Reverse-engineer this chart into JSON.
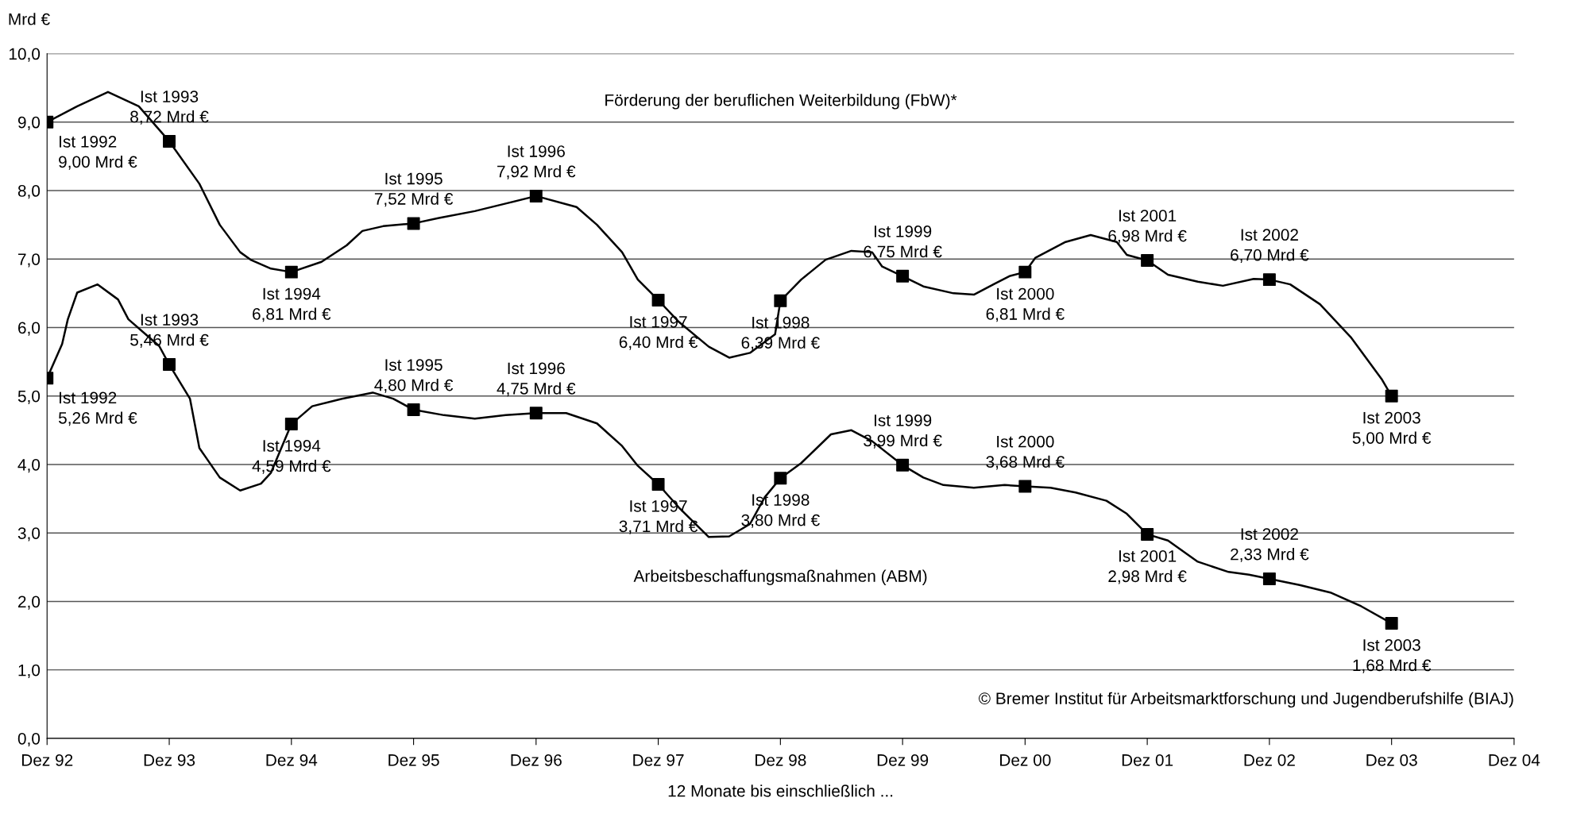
{
  "chart_data": {
    "type": "line",
    "ylabel": "Mrd €",
    "xlabel": "12 Monate bis einschließlich ...",
    "xlim": [
      "1992-12",
      "2004-12"
    ],
    "xticks": [
      {
        "value": "1992-12",
        "label": "Dez 92"
      },
      {
        "value": "1993-12",
        "label": "Dez 93"
      },
      {
        "value": "1994-12",
        "label": "Dez 94"
      },
      {
        "value": "1995-12",
        "label": "Dez 95"
      },
      {
        "value": "1996-12",
        "label": "Dez 96"
      },
      {
        "value": "1997-12",
        "label": "Dez 97"
      },
      {
        "value": "1998-12",
        "label": "Dez 98"
      },
      {
        "value": "1999-12",
        "label": "Dez 99"
      },
      {
        "value": "2000-12",
        "label": "Dez 00"
      },
      {
        "value": "2001-12",
        "label": "Dez 01"
      },
      {
        "value": "2002-12",
        "label": "Dez 02"
      },
      {
        "value": "2003-12",
        "label": "Dez 03"
      },
      {
        "value": "2004-12",
        "label": "Dez 04"
      }
    ],
    "ylim": [
      0,
      10
    ],
    "yticks": [
      {
        "value": 0,
        "label": "0,0"
      },
      {
        "value": 1,
        "label": "1,0"
      },
      {
        "value": 2,
        "label": "2,0"
      },
      {
        "value": 3,
        "label": "3,0"
      },
      {
        "value": 4,
        "label": "4,0"
      },
      {
        "value": 5,
        "label": "5,0"
      },
      {
        "value": 6,
        "label": "6,0"
      },
      {
        "value": 7,
        "label": "7,0"
      },
      {
        "value": 8,
        "label": "8,0"
      },
      {
        "value": 9,
        "label": "9,0"
      },
      {
        "value": 10,
        "label": "10,0"
      }
    ],
    "grid": "y",
    "series": [
      {
        "color": "#000000",
        "marker": "none",
        "x": [
          "1992-12",
          "1993-03",
          "1993-06",
          "1993-09",
          "1993-12",
          "1994-03",
          "1994-05",
          "1994-07",
          "1994-08",
          "1994-10",
          "1994-12",
          "1995-03",
          "1995-05-15",
          "1995-07",
          "1995-09",
          "1995-12",
          "1996-02-15",
          "1996-06",
          "1996-09",
          "1996-12",
          "1997-04",
          "1997-06",
          "1997-08-15",
          "1997-10",
          "1997-12",
          "1998-02",
          "1998-05",
          "1998-07",
          "1998-09",
          "1998-11-15",
          "1998-12",
          "1999-02",
          "1999-04-15",
          "1999-07",
          "1999-09",
          "1999-10",
          "1999-12",
          "2000-02",
          "2000-05",
          "2000-07",
          "2000-09",
          "2000-10-15",
          "2000-12",
          "2001-01",
          "2001-04",
          "2001-06-15",
          "2001-09",
          "2001-10",
          "2001-12",
          "2002-02",
          "2002-05",
          "2002-07-15",
          "2002-10-15",
          "2002-12",
          "2003-02",
          "2003-05",
          "2003-08",
          "2003-11",
          "2003-12"
        ],
        "values": [
          9.0,
          9.23,
          9.44,
          9.23,
          8.72,
          8.1,
          7.5,
          7.1,
          6.99,
          6.86,
          6.81,
          6.96,
          7.2,
          7.41,
          7.48,
          7.52,
          7.6,
          7.7,
          7.81,
          7.92,
          7.76,
          7.5,
          7.1,
          6.7,
          6.4,
          6.08,
          5.72,
          5.56,
          5.63,
          5.9,
          6.39,
          6.7,
          6.99,
          7.12,
          7.1,
          6.89,
          6.75,
          6.6,
          6.5,
          6.48,
          6.64,
          6.75,
          6.81,
          7.02,
          7.25,
          7.35,
          7.25,
          7.06,
          6.98,
          6.77,
          6.67,
          6.61,
          6.71,
          6.7,
          6.63,
          6.34,
          5.86,
          5.25,
          5.0
        ]
      },
      {
        "type": "scatter",
        "color": "#000000",
        "marker": "square",
        "x": [
          "1992-12",
          "1993-12",
          "1994-12",
          "1995-12",
          "1996-12",
          "1997-12",
          "1998-12",
          "1999-12",
          "2000-12",
          "2001-12",
          "2002-12",
          "2003-12"
        ],
        "values": [
          9.0,
          8.72,
          6.81,
          7.52,
          7.92,
          6.4,
          6.39,
          6.75,
          6.81,
          6.98,
          6.7,
          5.0
        ],
        "value_labels": [
          "Ist 1992\n9,00 Mrd €",
          "Ist 1993\n8,72 Mrd €",
          "Ist 1994\n6,81 Mrd €",
          "Ist 1995\n7,52 Mrd €",
          "Ist 1996\n7,92 Mrd €",
          "Ist 1997\n6,40 Mrd €",
          "Ist 1998\n6,39 Mrd €",
          "Ist 1999\n6,75 Mrd €",
          "Ist 2000\n6,81 Mrd €",
          "Ist 2001\n6,98 Mrd €",
          "Ist 2002\n6,70 Mrd €",
          "Ist 2003\n5,00 Mrd €"
        ]
      },
      {
        "color": "#000000",
        "marker": "none",
        "x": [
          "1992-12",
          "1993-01-15",
          "1993-02",
          "1993-03",
          "1993-05",
          "1993-07",
          "1993-08",
          "1993-10",
          "1993-11",
          "1993-12",
          "1994-02",
          "1994-03",
          "1994-05",
          "1994-07",
          "1994-09",
          "1994-10",
          "1994-12",
          "1995-02",
          "1995-05",
          "1995-08",
          "1995-10",
          "1995-12",
          "1996-03",
          "1996-06",
          "1996-09",
          "1996-12",
          "1997-03",
          "1997-06",
          "1997-08-15",
          "1997-10",
          "1997-12",
          "1998-02",
          "1998-05",
          "1998-07",
          "1998-09",
          "1998-10-15",
          "1998-12",
          "1999-02",
          "1999-05",
          "1999-07",
          "1999-09",
          "1999-12",
          "2000-02",
          "2000-04",
          "2000-07",
          "2000-10",
          "2000-12",
          "2001-02-15",
          "2001-05",
          "2001-08",
          "2001-10",
          "2001-12",
          "2002-02",
          "2002-05",
          "2002-08",
          "2002-10",
          "2002-12",
          "2003-03",
          "2003-06",
          "2003-09",
          "2003-12"
        ],
        "values": [
          5.26,
          5.76,
          6.12,
          6.51,
          6.63,
          6.41,
          6.12,
          5.86,
          5.73,
          5.46,
          4.96,
          4.24,
          3.81,
          3.62,
          3.72,
          3.88,
          4.59,
          4.85,
          4.96,
          5.05,
          4.96,
          4.8,
          4.72,
          4.67,
          4.72,
          4.75,
          4.75,
          4.6,
          4.27,
          3.98,
          3.71,
          3.37,
          2.94,
          2.95,
          3.13,
          3.52,
          3.8,
          4.02,
          4.44,
          4.5,
          4.34,
          3.99,
          3.81,
          3.7,
          3.66,
          3.7,
          3.68,
          3.66,
          3.59,
          3.47,
          3.28,
          2.98,
          2.89,
          2.58,
          2.43,
          2.39,
          2.33,
          2.24,
          2.13,
          1.93,
          1.68
        ]
      },
      {
        "type": "scatter",
        "color": "#000000",
        "marker": "square",
        "x": [
          "1992-12",
          "1993-12",
          "1994-12",
          "1995-12",
          "1996-12",
          "1997-12",
          "1998-12",
          "1999-12",
          "2000-12",
          "2001-12",
          "2002-12",
          "2003-12"
        ],
        "values": [
          5.26,
          5.46,
          4.59,
          4.8,
          4.75,
          3.71,
          3.8,
          3.99,
          3.68,
          2.98,
          2.33,
          1.68
        ],
        "value_labels": [
          "Ist 1992\n5,26 Mrd €",
          "Ist 1993\n5,46 Mrd €",
          "Ist 1994\n4,59 Mrd €",
          "Ist 1995\n4,80 Mrd €",
          "Ist 1996\n4,75 Mrd €",
          "Ist 1997\n3,71 Mrd €",
          "Ist 1998\n3,80 Mrd €",
          "Ist 1999\n3,99 Mrd €",
          "Ist 2000\n3,68 Mrd €",
          "Ist 2001\n2,98 Mrd €",
          "Ist 2002\n2,33 Mrd €",
          "Ist 2003\n1,68 Mrd €"
        ]
      }
    ],
    "annotations": [
      "Förderung der beruflichen Weiterbildung (FbW)*",
      "Arbeitsbeschaffungsmaßnahmen (ABM)",
      "© Bremer Institut für Arbeitsmarktforschung und Jugendberufshilfe (BIAJ)"
    ]
  }
}
